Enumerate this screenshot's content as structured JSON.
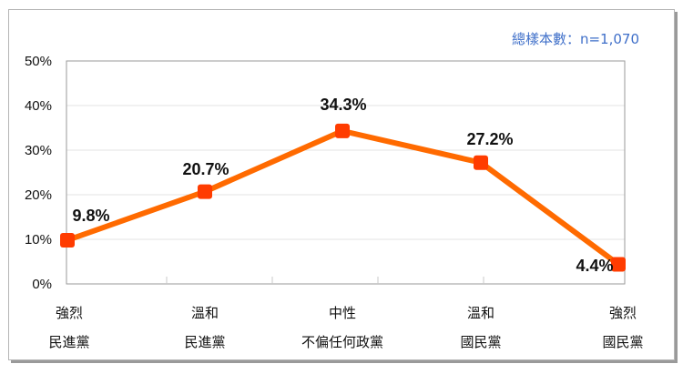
{
  "sample_note": "總樣本數：n=1,070",
  "colors": {
    "line": "#ff6a00",
    "marker": "#ff3c00",
    "sample_text": "#3f6fc9",
    "grid": "#e3e3e3",
    "axis": "#9a9a9a"
  },
  "chart_data": {
    "type": "line",
    "title": "",
    "xlabel": "",
    "ylabel": "",
    "ylim": [
      0,
      50
    ],
    "yticks": [
      "0%",
      "10%",
      "20%",
      "30%",
      "40%",
      "50%"
    ],
    "grid": true,
    "legend": null,
    "annotations": [
      "總樣本數：n=1,070"
    ],
    "categories": [
      [
        "強烈",
        "民進黨"
      ],
      [
        "溫和",
        "民進黨"
      ],
      [
        "中性",
        "不偏任何政黨"
      ],
      [
        "溫和",
        "國民黨"
      ],
      [
        "強烈",
        "國民黨"
      ]
    ],
    "series": [
      {
        "name": "比例",
        "values": [
          9.8,
          20.7,
          34.3,
          27.2,
          4.4
        ],
        "labels": [
          "9.8%",
          "20.7%",
          "34.3%",
          "27.2%",
          "4.4%"
        ]
      }
    ]
  }
}
